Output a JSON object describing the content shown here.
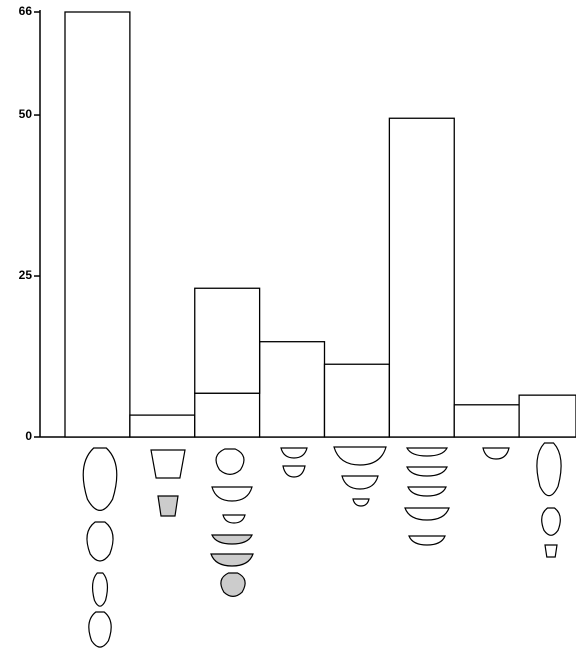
{
  "chart_data": {
    "type": "bar",
    "categories": [
      null,
      null,
      null,
      null,
      null,
      null,
      null,
      null
    ],
    "series": [
      {
        "color": "#ffffff",
        "values": [
          66,
          3.4,
          6.8,
          14.8,
          11.3,
          49.5,
          5.0,
          6.5
        ]
      },
      {
        "color": "#ffffff",
        "values": [
          null,
          null,
          16.3,
          null,
          null,
          null,
          null,
          null
        ]
      }
    ],
    "ylim": [
      0,
      66
    ],
    "yticks": [
      0,
      25,
      50,
      66
    ]
  }
}
